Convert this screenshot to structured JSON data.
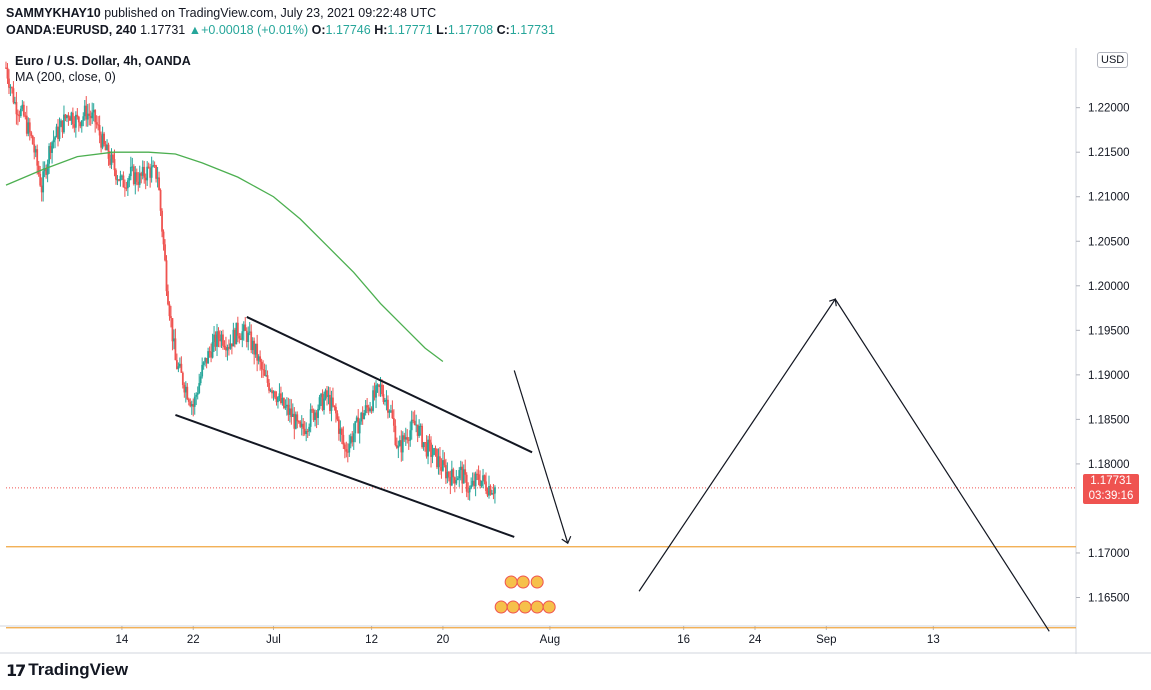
{
  "header": {
    "publisher": "SAMMYKHAY10",
    "published_text": "published on TradingView.com, July 23, 2021 09:22:48 UTC",
    "symbol": "OANDA:EURUSD, 240",
    "last": "1.17731",
    "change": "+0.00018 (+0.01%)",
    "o_label": "O:",
    "o": "1.17746",
    "h_label": "H:",
    "h": "1.17771",
    "l_label": "L:",
    "l": "1.17708",
    "c_label": "C:",
    "c": "1.17731"
  },
  "legend": {
    "title": "Euro / U.S. Dollar, 4h, OANDA",
    "indicator": "MA (200, close, 0)"
  },
  "price_axis": {
    "currency_button": "USD",
    "current_price": "1.17731",
    "countdown": "03:39:16"
  },
  "footer": {
    "brand": "TradingView"
  },
  "chart_data": {
    "type": "candlestick",
    "title": "Euro / U.S. Dollar, 4h, OANDA",
    "y_ticks": [
      "1.22000",
      "1.21500",
      "1.21000",
      "1.20500",
      "1.20000",
      "1.19500",
      "1.19000",
      "1.18500",
      "1.18000",
      "1.17000",
      "1.16500"
    ],
    "y_tick_values": [
      1.22,
      1.215,
      1.21,
      1.205,
      1.2,
      1.195,
      1.19,
      1.185,
      1.18,
      1.17,
      1.165
    ],
    "x_ticks": [
      "14",
      "22",
      "Jul",
      "12",
      "20",
      "Aug",
      "16",
      "24",
      "Sep",
      "13"
    ],
    "x_tick_days": [
      13,
      21,
      30,
      41,
      49,
      61,
      76,
      84,
      92,
      104
    ],
    "ylim": [
      1.1618,
      1.2267
    ],
    "xlim": [
      0,
      120
    ],
    "current_price": 1.17731,
    "ma_period": 200,
    "candles_daily_close": [
      [
        0,
        1.2245
      ],
      [
        1,
        1.2205
      ],
      [
        2,
        1.219
      ],
      [
        3,
        1.216
      ],
      [
        4,
        1.211
      ],
      [
        5,
        1.216
      ],
      [
        6,
        1.2175
      ],
      [
        7,
        1.2195
      ],
      [
        8,
        1.2185
      ],
      [
        9,
        1.2195
      ],
      [
        10,
        1.2185
      ],
      [
        11,
        1.2155
      ],
      [
        12,
        1.2135
      ],
      [
        13,
        1.2115
      ],
      [
        14,
        1.2125
      ],
      [
        15,
        1.212
      ],
      [
        16,
        1.213
      ],
      [
        17,
        1.2125
      ],
      [
        18,
        1.2005
      ],
      [
        19,
        1.1915
      ],
      [
        20,
        1.189
      ],
      [
        21,
        1.1865
      ],
      [
        22,
        1.1905
      ],
      [
        23,
        1.193
      ],
      [
        24,
        1.1945
      ],
      [
        25,
        1.1935
      ],
      [
        26,
        1.195
      ],
      [
        27,
        1.1945
      ],
      [
        28,
        1.1925
      ],
      [
        29,
        1.1895
      ],
      [
        30,
        1.1885
      ],
      [
        31,
        1.1865
      ],
      [
        32,
        1.1855
      ],
      [
        33,
        1.1835
      ],
      [
        34,
        1.185
      ],
      [
        35,
        1.1865
      ],
      [
        36,
        1.1875
      ],
      [
        37,
        1.1855
      ],
      [
        38,
        1.1815
      ],
      [
        39,
        1.1835
      ],
      [
        40,
        1.1855
      ],
      [
        41,
        1.187
      ],
      [
        42,
        1.1885
      ],
      [
        43,
        1.1865
      ],
      [
        44,
        1.1815
      ],
      [
        45,
        1.1835
      ],
      [
        46,
        1.1845
      ],
      [
        47,
        1.182
      ],
      [
        48,
        1.181
      ],
      [
        49,
        1.1795
      ],
      [
        50,
        1.1785
      ],
      [
        51,
        1.179
      ],
      [
        52,
        1.177
      ],
      [
        53,
        1.1785
      ],
      [
        54,
        1.1775
      ],
      [
        55,
        1.1773
      ]
    ],
    "ma_series": [
      [
        0,
        1.2113
      ],
      [
        4,
        1.213
      ],
      [
        8,
        1.2145
      ],
      [
        12,
        1.215
      ],
      [
        16,
        1.215
      ],
      [
        19,
        1.2148
      ],
      [
        22,
        1.2138
      ],
      [
        26,
        1.2122
      ],
      [
        30,
        1.21
      ],
      [
        33,
        1.2075
      ],
      [
        36,
        1.2045
      ],
      [
        39,
        1.2015
      ],
      [
        42,
        1.198
      ],
      [
        45,
        1.195
      ],
      [
        47,
        1.193
      ],
      [
        49,
        1.1915
      ]
    ],
    "channel_upper": [
      [
        27,
        1.1965
      ],
      [
        59,
        1.1813
      ]
    ],
    "channel_lower": [
      [
        19,
        1.1855
      ],
      [
        57,
        1.1718
      ]
    ],
    "support_levels": [
      1.1707,
      1.1616
    ],
    "projection_path": [
      [
        57,
        1.1905
      ],
      [
        63,
        1.1711
      ]
    ],
    "projection_path_2": [
      [
        71,
        1.1657
      ],
      [
        93,
        1.1985
      ],
      [
        117,
        1.1612
      ]
    ]
  }
}
